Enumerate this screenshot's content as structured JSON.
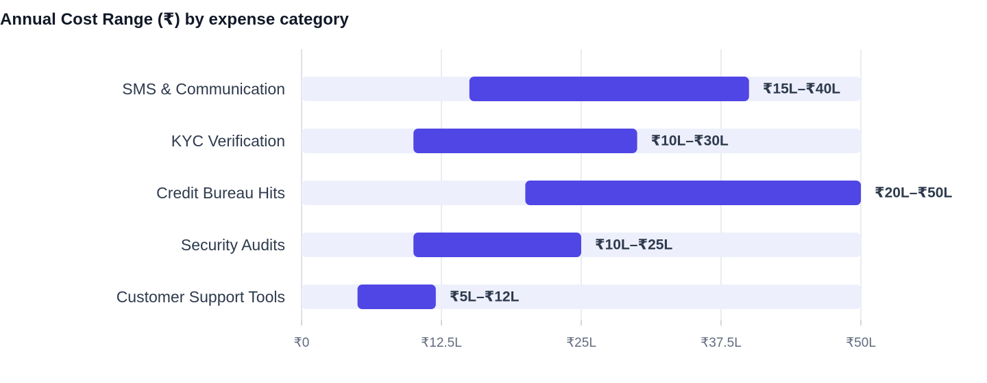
{
  "chart_data": {
    "type": "bar",
    "subtype": "floating-range-horizontal",
    "title": "Annual Cost Range (₹) by expense category",
    "xlabel": "",
    "ylabel": "",
    "xlim": [
      0,
      50
    ],
    "x_unit": "₹ lakh",
    "xticks": [
      0,
      12.5,
      25,
      37.5,
      50
    ],
    "xtick_labels": [
      "₹0",
      "₹12.5L",
      "₹25L",
      "₹37.5L",
      "₹50L"
    ],
    "grid": true,
    "legend": "none",
    "categories": [
      "SMS & Communication",
      "KYC Verification",
      "Credit Bureau Hits",
      "Security Audits",
      "Customer Support Tools"
    ],
    "ranges": [
      {
        "low": 15,
        "high": 40,
        "label": "₹15L–₹40L"
      },
      {
        "low": 10,
        "high": 30,
        "label": "₹10L–₹30L"
      },
      {
        "low": 20,
        "high": 50,
        "label": "₹20L–₹50L"
      },
      {
        "low": 10,
        "high": 25,
        "label": "₹10L–₹25L"
      },
      {
        "low": 5,
        "high": 12,
        "label": "₹5L–₹12L"
      }
    ],
    "colors": {
      "bar": "#4f46e5",
      "track": "#edf0fc",
      "grid": "#e3e6eb",
      "title": "#111827",
      "category_text": "#2e3a4d",
      "tick_text": "#5f6b7d"
    }
  }
}
